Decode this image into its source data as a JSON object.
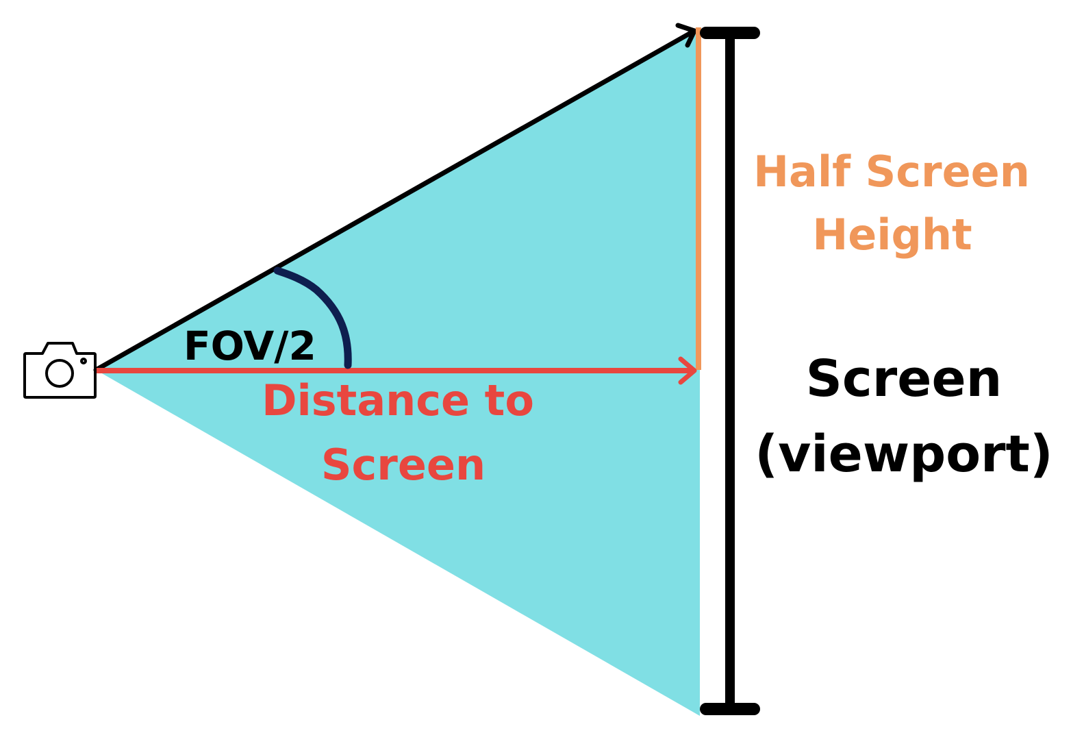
{
  "labels": {
    "angle": "FOV/2",
    "distance_line1": "Distance to",
    "distance_line2": "Screen",
    "half_height_line1": "Half Screen",
    "half_height_line2": "Height",
    "screen_line1": "Screen",
    "screen_line2": "(viewport)"
  },
  "icons": {
    "camera": "camera-icon"
  },
  "colors": {
    "frustum_fill": "#80dfe4",
    "distance": "#e8473f",
    "half_height": "#f0975a",
    "angle_arc": "#0e1f4f",
    "screen_bar": "#000000",
    "text": "#000000"
  }
}
